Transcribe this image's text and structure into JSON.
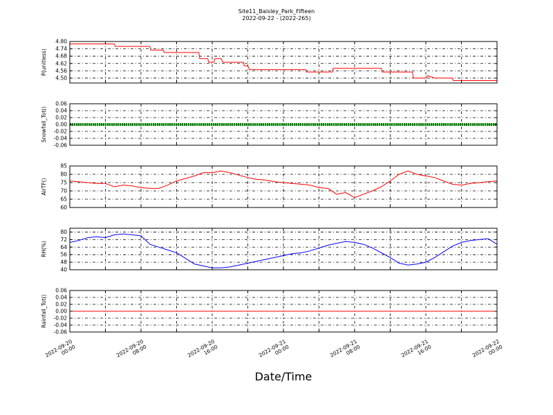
{
  "figure": {
    "title": "Site11_Baisley_Park_Fifteen",
    "subtitle": "2022-09-22 - (2022-265)",
    "xlabel": "Date/Time"
  },
  "chart_data": [
    {
      "type": "line",
      "ylabel": "P(unitless)",
      "ylim": [
        4.46,
        4.8
      ],
      "yticks": [
        "4.80",
        "4.74",
        "4.68",
        "4.62",
        "4.56",
        "4.50"
      ],
      "ytick_values": [
        4.8,
        4.74,
        4.68,
        4.62,
        4.56,
        4.5
      ],
      "color": "#ff0000",
      "x": [
        0,
        5,
        5.1,
        9,
        9.1,
        10.5,
        10.6,
        14.5,
        14.6,
        15.5,
        15.6,
        16.2,
        16.3,
        17,
        17.2,
        19.5,
        19.6,
        20,
        20.2,
        26.5,
        26.6,
        29.5,
        29.6,
        35,
        35.1,
        38.5,
        38.6,
        40,
        40.2,
        41,
        41.2,
        43,
        43.1,
        48
      ],
      "values": [
        4.78,
        4.78,
        4.76,
        4.76,
        4.73,
        4.73,
        4.71,
        4.71,
        4.66,
        4.66,
        4.63,
        4.63,
        4.66,
        4.66,
        4.63,
        4.63,
        4.6,
        4.6,
        4.57,
        4.57,
        4.55,
        4.55,
        4.58,
        4.58,
        4.55,
        4.55,
        4.5,
        4.5,
        4.52,
        4.5,
        4.5,
        4.5,
        4.48,
        4.48
      ]
    },
    {
      "type": "line",
      "ylabel": "Snowfall_Tot()",
      "ylim": [
        -0.06,
        0.06
      ],
      "yticks": [
        "0.06",
        "0.04",
        "0.02",
        "0.00",
        "-0.02",
        "-0.04",
        "-0.06"
      ],
      "ytick_values": [
        0.06,
        0.04,
        0.02,
        0.0,
        -0.02,
        -0.04,
        -0.06
      ],
      "color": "#008000",
      "marker": "dot",
      "x": [
        0,
        48
      ],
      "values": [
        0,
        0
      ]
    },
    {
      "type": "line",
      "ylabel": "AirTF()",
      "ylim": [
        60,
        85
      ],
      "yticks": [
        "85",
        "80",
        "75",
        "70",
        "65",
        "60"
      ],
      "ytick_values": [
        85,
        80,
        75,
        70,
        65,
        60
      ],
      "color": "#ff0000",
      "x": [
        0,
        1,
        2,
        3,
        4,
        5,
        6,
        7,
        8,
        9,
        10,
        11,
        12,
        13,
        14,
        15,
        16,
        17,
        18,
        19,
        20,
        21,
        22,
        23,
        24,
        25,
        26,
        27,
        28,
        29,
        30,
        31,
        32,
        33,
        34,
        35,
        36,
        37,
        38,
        39,
        40,
        41,
        42,
        43,
        44,
        45,
        46,
        47,
        48
      ],
      "values": [
        76,
        75.5,
        75,
        74.5,
        74.5,
        72.5,
        73.5,
        73,
        72,
        71.5,
        71.5,
        73.5,
        76,
        77.5,
        79,
        81,
        81,
        82,
        81,
        79.5,
        78,
        77,
        76.5,
        75.5,
        75,
        74.5,
        74,
        73.5,
        72,
        71.5,
        68,
        69,
        66,
        68,
        70,
        72.5,
        76,
        80,
        82,
        80,
        79,
        78,
        76,
        74,
        73.5,
        74.5,
        75,
        75.5,
        76
      ]
    },
    {
      "type": "line",
      "ylabel": "RH(%)",
      "ylim": [
        40,
        84
      ],
      "yticks": [
        "80",
        "72",
        "64",
        "56",
        "48",
        "40"
      ],
      "ytick_values": [
        80,
        72,
        64,
        56,
        48,
        40
      ],
      "color": "#0000ff",
      "x": [
        0,
        1,
        2,
        3,
        4,
        5,
        6,
        7,
        8,
        9,
        10,
        11,
        12,
        13,
        14,
        15,
        16,
        17,
        18,
        19,
        20,
        21,
        22,
        23,
        24,
        25,
        26,
        27,
        28,
        29,
        30,
        31,
        32,
        33,
        34,
        35,
        36,
        37,
        38,
        39,
        40,
        41,
        42,
        43,
        44,
        45,
        46,
        47,
        48
      ],
      "values": [
        69,
        71,
        74,
        75,
        74,
        77,
        78,
        77,
        76,
        67,
        64,
        61,
        58,
        52,
        46,
        44,
        42,
        42,
        43,
        45,
        47,
        49,
        51,
        53,
        55,
        57,
        58,
        60,
        63,
        66,
        68,
        70,
        69,
        67,
        63,
        58,
        53,
        47,
        45,
        46,
        48,
        53,
        59,
        65,
        69,
        71,
        72,
        73,
        67
      ]
    },
    {
      "type": "line",
      "ylabel": "Rainfall_Tot()",
      "ylim": [
        -0.06,
        0.06
      ],
      "yticks": [
        "0.06",
        "0.04",
        "0.02",
        "0.00",
        "-0.02",
        "-0.04",
        "-0.06"
      ],
      "ytick_values": [
        0.06,
        0.04,
        0.02,
        0.0,
        -0.02,
        -0.04,
        -0.06
      ],
      "color": "#ff0000",
      "x": [
        0,
        48
      ],
      "values": [
        0,
        0
      ]
    }
  ],
  "xaxis": {
    "range_hours": [
      0,
      48
    ],
    "tick_hours": [
      0,
      8,
      16,
      24,
      32,
      40,
      48
    ],
    "tick_labels": [
      [
        "2022-09-20",
        "00:00"
      ],
      [
        "2022-09-20",
        "08:00"
      ],
      [
        "2022-09-20",
        "16:00"
      ],
      [
        "2022-09-21",
        "00:00"
      ],
      [
        "2022-09-21",
        "08:00"
      ],
      [
        "2022-09-21",
        "16:00"
      ],
      [
        "2022-09-22",
        "00:00"
      ]
    ]
  }
}
